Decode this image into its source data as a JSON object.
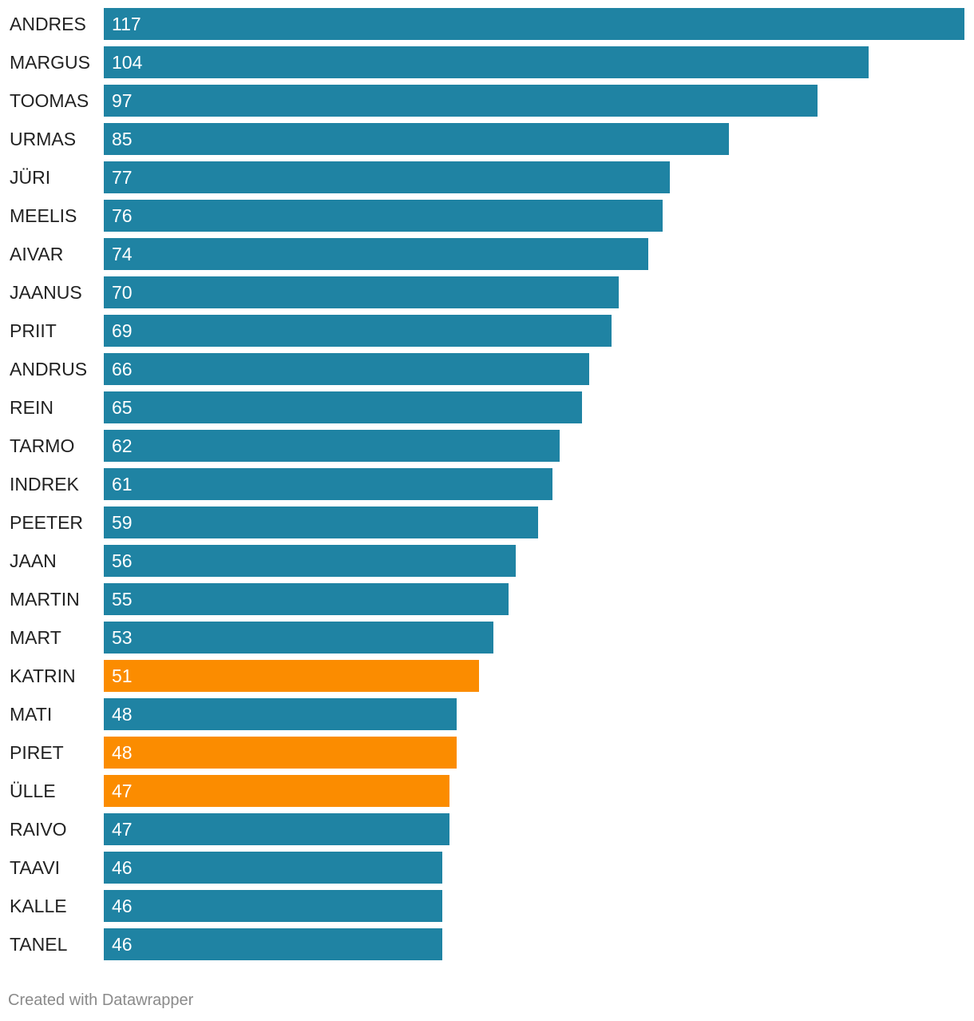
{
  "chart_data": {
    "type": "bar",
    "orientation": "horizontal",
    "categories": [
      "ANDRES",
      "MARGUS",
      "TOOMAS",
      "URMAS",
      "JÜRI",
      "MEELIS",
      "AIVAR",
      "JAANUS",
      "PRIIT",
      "ANDRUS",
      "REIN",
      "TARMO",
      "INDREK",
      "PEETER",
      "JAAN",
      "MARTIN",
      "MART",
      "KATRIN",
      "MATI",
      "PIRET",
      "ÜLLE",
      "RAIVO",
      "TAAVI",
      "KALLE",
      "TANEL"
    ],
    "values": [
      117,
      104,
      97,
      85,
      77,
      76,
      74,
      70,
      69,
      66,
      65,
      62,
      61,
      59,
      56,
      55,
      53,
      51,
      48,
      48,
      47,
      47,
      46,
      46,
      46
    ],
    "highlighted": [
      "KATRIN",
      "PIRET",
      "ÜLLE"
    ],
    "colors": {
      "default": "#1f83a3",
      "highlight": "#fb8c00"
    },
    "xlim": [
      0,
      117
    ],
    "title": "",
    "xlabel": "",
    "ylabel": "",
    "grid": false,
    "value_labels": "inside-left"
  },
  "footer": {
    "credit": "Created with Datawrapper"
  }
}
